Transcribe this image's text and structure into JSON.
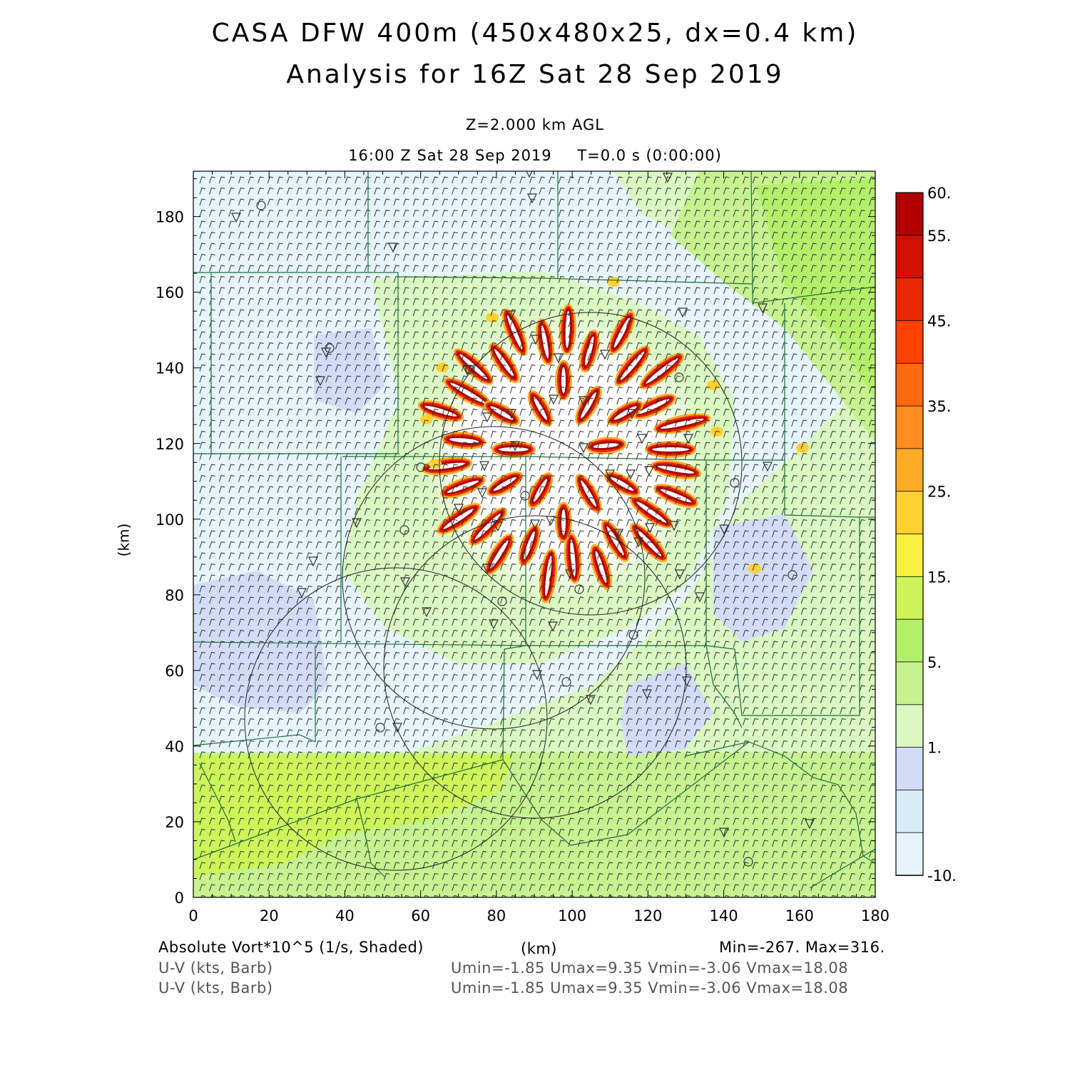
{
  "title": {
    "line1": "CASA DFW 400m (450x480x25, dx=0.4 km)",
    "line2": "Analysis for 16Z Sat 28 Sep 2019"
  },
  "subtitle": {
    "level": "Z=2.000 km AGL",
    "valid_time": "16:00 Z Sat 28 Sep 2019",
    "forecast_time": "T=0.0 s (0:00:00)"
  },
  "axes": {
    "xlabel": "(km)",
    "ylabel": "(km)",
    "x_ticks": [
      "0",
      "20",
      "40",
      "60",
      "80",
      "100",
      "120",
      "140",
      "160",
      "180"
    ],
    "y_ticks": [
      "0",
      "20",
      "40",
      "60",
      "80",
      "100",
      "120",
      "140",
      "160",
      "180"
    ],
    "x_range_km": [
      0,
      180
    ],
    "y_range_km": [
      0,
      192
    ]
  },
  "colorbar": {
    "labels": [
      "60.",
      "55.",
      "45.",
      "35.",
      "25.",
      "15.",
      "5.",
      "1.",
      "-10."
    ],
    "colors": [
      "#b00000",
      "#d01000",
      "#e82800",
      "#ff4000",
      "#ff6a10",
      "#ff8c20",
      "#ffaa25",
      "#ffd030",
      "#f8f040",
      "#ccf55a",
      "#b4ef6a",
      "#c6f290",
      "#daf8c2",
      "#d2dcf6",
      "#d8ecf8",
      "#e6f5fb"
    ]
  },
  "footer": {
    "field1": "Absolute Vort*10^5 (1/s, Shaded)",
    "field2": "U-V (kts, Barb)",
    "field3": "U-V (kts, Barb)",
    "xunit": "(km)",
    "minmax": "Min=-267. Max=316.",
    "uv_stats1": "Umin=-1.85 Umax=9.35 Vmin=-3.06 Vmax=18.08",
    "uv_stats2": "Umin=-1.85 Umax=9.35 Vmin=-3.06 Vmax=18.08"
  }
}
